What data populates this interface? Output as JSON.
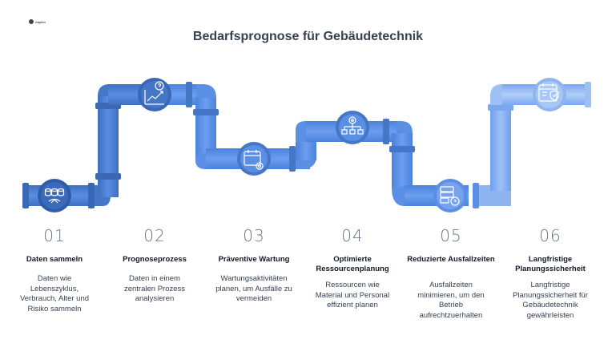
{
  "logo": {
    "label": "napkin"
  },
  "title": "Bedarfsprognose für Gebäudetechnik",
  "colors": {
    "dark": "#4677c7",
    "mid": "#5b8fe4",
    "light": "#8fb5f0",
    "lightest": "#b7d0f5"
  },
  "steps": [
    {
      "num": "01",
      "heading": "Daten sammeln",
      "desc": "Daten wie Lebenszyklus, Verbrauch, Alter und Risiko sammeln",
      "icon": "database-icon"
    },
    {
      "num": "02",
      "heading": "Prognoseprozess",
      "desc": "Daten in einem zentralen Prozess analysieren",
      "icon": "chart-question-icon"
    },
    {
      "num": "03",
      "heading": "Präventive Wartung",
      "desc": "Wartungsaktivitäten planen, um Ausfälle zu vermeiden",
      "icon": "calendar-gear-icon"
    },
    {
      "num": "04",
      "heading": "Optimierte Ressourcenplanung",
      "desc": "Ressourcen wie Material und Personal effizient planen",
      "icon": "hierarchy-gear-icon"
    },
    {
      "num": "05",
      "heading": "Reduzierte Ausfallzeiten",
      "desc": "Ausfallzeiten minimieren, um den Betrieb aufrechtzuerhalten",
      "icon": "server-clock-icon"
    },
    {
      "num": "06",
      "heading": "Langfristige Planungssicherheit",
      "desc": "Langfristige Planungssicherheit für Gebäudetechnik gewährleisten",
      "icon": "calendar-shield-icon"
    }
  ]
}
